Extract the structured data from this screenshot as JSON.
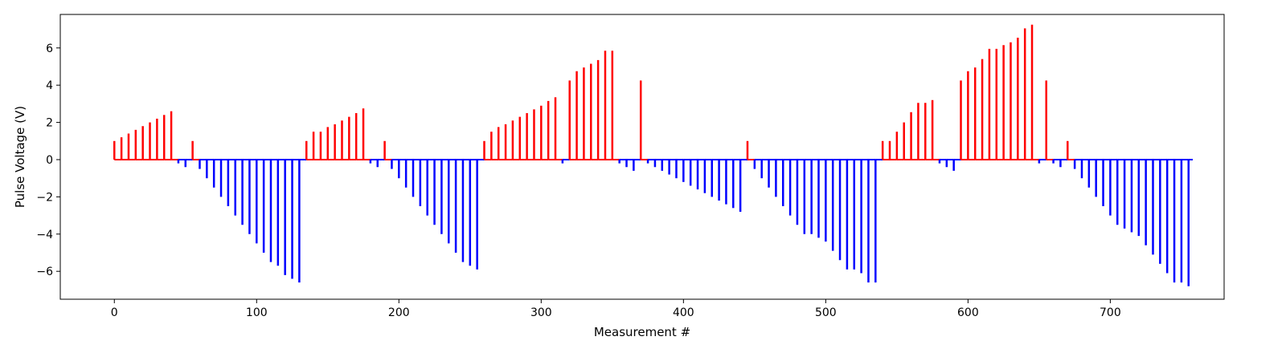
{
  "chart_data": {
    "type": "bar",
    "title": "",
    "xlabel": "Measurement #",
    "ylabel": "Pulse Voltage (V)",
    "xlim": [
      -38,
      780
    ],
    "ylim": [
      -7.5,
      7.8
    ],
    "xticks": [
      0,
      100,
      200,
      300,
      400,
      500,
      600,
      700
    ],
    "yticks": [
      -6,
      -4,
      -2,
      0,
      2,
      4,
      6
    ],
    "grid": false,
    "legend": "none",
    "colors": {
      "positive": "#ff0000",
      "negative": "#0000ff",
      "axes": "#000000"
    },
    "baseline": {
      "x": [
        0,
        758
      ],
      "y": 0
    },
    "series": [
      {
        "color": "#ff0000",
        "x": [
          0,
          5,
          10,
          15,
          20,
          25,
          30,
          35,
          40,
          55,
          135,
          140,
          145,
          150,
          155,
          160,
          165,
          170,
          175,
          190,
          260,
          265,
          270,
          275,
          280,
          285,
          290,
          295,
          300,
          305,
          310,
          320,
          325,
          330,
          335,
          340,
          345,
          350,
          370,
          445,
          540,
          545,
          550,
          555,
          560,
          565,
          570,
          575,
          595,
          600,
          605,
          610,
          615,
          620,
          625,
          630,
          635,
          640,
          645,
          655,
          670
        ],
        "values": [
          1.0,
          1.2,
          1.4,
          1.6,
          1.8,
          2.0,
          2.2,
          2.4,
          2.6,
          1.0,
          1.0,
          1.5,
          1.5,
          1.75,
          1.9,
          2.1,
          2.3,
          2.5,
          2.75,
          1.0,
          1.0,
          1.5,
          1.75,
          1.9,
          2.1,
          2.3,
          2.5,
          2.7,
          2.9,
          3.15,
          3.35,
          4.25,
          4.75,
          4.95,
          5.15,
          5.35,
          5.85,
          5.85,
          4.25,
          1.0,
          1.0,
          1.0,
          1.5,
          2.0,
          2.55,
          3.05,
          3.05,
          3.2,
          4.25,
          4.75,
          4.95,
          5.4,
          5.95,
          5.95,
          6.15,
          6.3,
          6.55,
          7.05,
          7.25,
          4.25,
          1.0
        ]
      },
      {
        "color": "#0000ff",
        "x": [
          45,
          50,
          60,
          65,
          70,
          75,
          80,
          85,
          90,
          95,
          100,
          105,
          110,
          115,
          120,
          125,
          130,
          180,
          185,
          195,
          200,
          205,
          210,
          215,
          220,
          225,
          230,
          235,
          240,
          245,
          250,
          255,
          315,
          355,
          360,
          365,
          375,
          380,
          385,
          390,
          395,
          400,
          405,
          410,
          415,
          420,
          425,
          430,
          435,
          440,
          450,
          455,
          460,
          465,
          470,
          475,
          480,
          485,
          490,
          495,
          500,
          505,
          510,
          515,
          520,
          525,
          530,
          535,
          580,
          585,
          590,
          650,
          660,
          665,
          675,
          680,
          685,
          690,
          695,
          700,
          705,
          710,
          715,
          720,
          725,
          730,
          735,
          740,
          745,
          750,
          755
        ],
        "values": [
          -0.2,
          -0.4,
          -0.5,
          -1.0,
          -1.5,
          -2.0,
          -2.5,
          -3.0,
          -3.5,
          -4.0,
          -4.5,
          -5.0,
          -5.5,
          -5.7,
          -6.2,
          -6.4,
          -6.6,
          -0.2,
          -0.4,
          -0.5,
          -1.0,
          -1.5,
          -2.0,
          -2.5,
          -3.0,
          -3.5,
          -4.0,
          -4.5,
          -5.0,
          -5.5,
          -5.7,
          -5.9,
          -0.2,
          -0.2,
          -0.4,
          -0.6,
          -0.2,
          -0.4,
          -0.6,
          -0.8,
          -1.0,
          -1.2,
          -1.4,
          -1.6,
          -1.8,
          -2.0,
          -2.2,
          -2.4,
          -2.6,
          -2.8,
          -0.5,
          -1.0,
          -1.5,
          -2.0,
          -2.5,
          -3.0,
          -3.5,
          -4.0,
          -4.0,
          -4.2,
          -4.4,
          -4.9,
          -5.4,
          -5.9,
          -5.9,
          -6.1,
          -6.6,
          -6.6,
          -0.2,
          -0.4,
          -0.6,
          -0.2,
          -0.2,
          -0.4,
          -0.5,
          -1.0,
          -1.5,
          -2.0,
          -2.5,
          -3.0,
          -3.5,
          -3.7,
          -3.9,
          -4.1,
          -4.6,
          -5.1,
          -5.6,
          -6.1,
          -6.6,
          -6.6,
          -6.8
        ]
      }
    ]
  }
}
